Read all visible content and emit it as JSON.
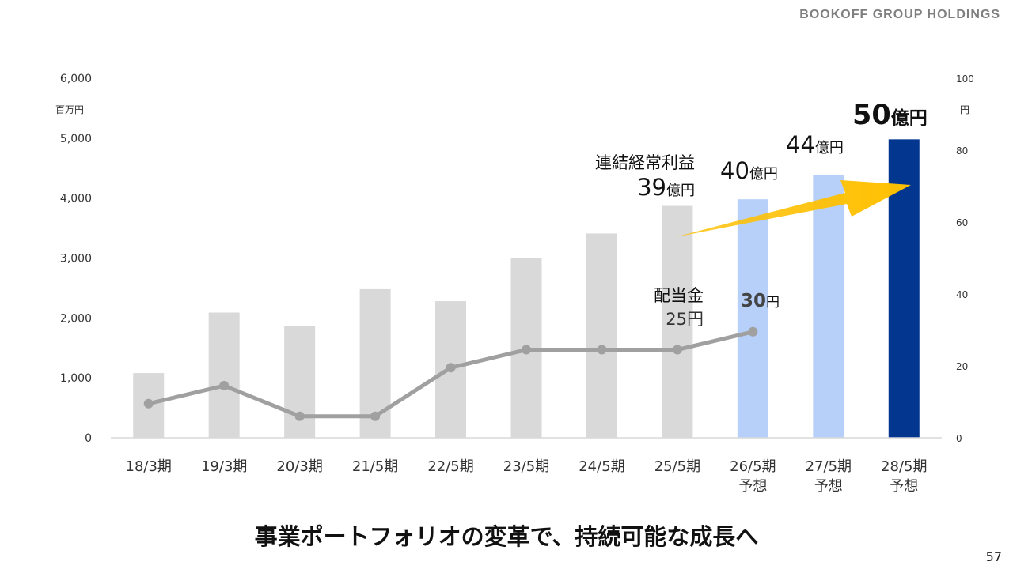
{
  "header": {
    "brand": "BOOKOFF GROUP HOLDINGS"
  },
  "footer": {
    "title": "事業ポートフォリオの変革で、持続可能な成長へ",
    "page_number": "57"
  },
  "colors": {
    "actual_bar": "#d9d9d9",
    "forecast_bar": "#b7d0fa",
    "target_bar": "#03368f",
    "dividend_line": "#a0a0a0",
    "arrow": "#ffc000"
  },
  "annotations": {
    "profit_label": "連結経常利益",
    "profit_39_num": "39",
    "profit_39_unit": "億円",
    "profit_40_num": "40",
    "profit_40_unit": "億円",
    "profit_44_num": "44",
    "profit_44_unit": "億円",
    "profit_50_num": "50",
    "profit_50_unit": "億円",
    "dividend_label": "配当金",
    "dividend_25_num": "25",
    "dividend_25_unit": "円",
    "dividend_30_num": "30",
    "dividend_30_unit": "円"
  },
  "chart_data": {
    "type": "bar",
    "categories": [
      [
        "18/3期"
      ],
      [
        "19/3期"
      ],
      [
        "20/3期"
      ],
      [
        "21/5期"
      ],
      [
        "22/5期"
      ],
      [
        "23/5期"
      ],
      [
        "24/5期"
      ],
      [
        "25/5期"
      ],
      [
        "26/5期",
        "予想"
      ],
      [
        "27/5期",
        "予想"
      ],
      [
        "28/5期",
        "予想"
      ]
    ],
    "y_left": {
      "unit": "百万円",
      "ylim": [
        0,
        6000
      ],
      "ticks": [
        "0",
        "1,000",
        "2,000",
        "3,000",
        "4,000",
        "5,000",
        "6,000"
      ]
    },
    "y_right": {
      "unit": "円",
      "ylim": [
        0,
        100
      ],
      "ticks": [
        "0",
        "20",
        "40",
        "60",
        "80",
        "100"
      ]
    },
    "series": [
      {
        "name": "連結経常利益",
        "type": "bar",
        "axis": "left",
        "values": [
          1080,
          2090,
          1870,
          2480,
          2280,
          3000,
          3410,
          3870,
          3980,
          4380,
          4980
        ],
        "bar_kind": [
          "actual",
          "actual",
          "actual",
          "actual",
          "actual",
          "actual",
          "actual",
          "actual",
          "forecast",
          "forecast",
          "target"
        ]
      },
      {
        "name": "配当金",
        "type": "line",
        "axis": "right",
        "values": [
          9.5,
          14.5,
          6,
          6,
          19.5,
          24.5,
          24.5,
          24.5,
          29.5,
          null,
          null
        ]
      }
    ],
    "grid": false,
    "legend": "none"
  }
}
